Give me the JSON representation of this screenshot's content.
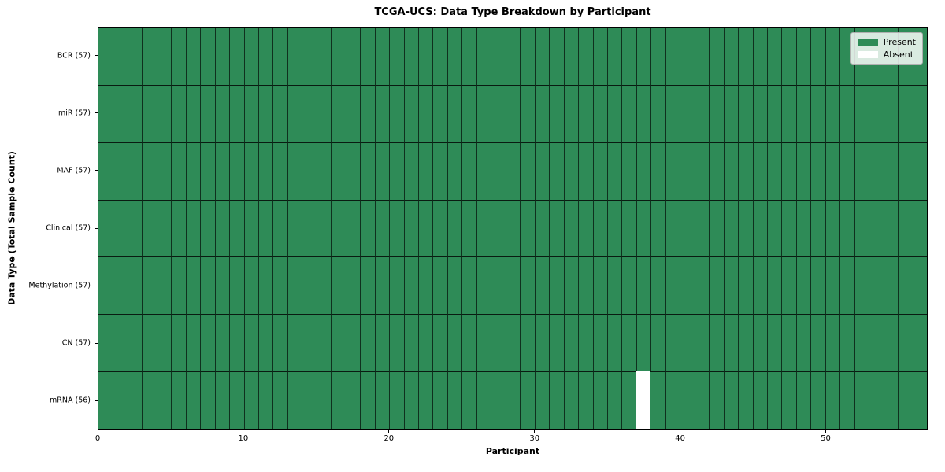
{
  "chart_data": {
    "type": "heatmap",
    "title": "TCGA-UCS: Data Type Breakdown by Participant",
    "xlabel": "Participant",
    "ylabel": "Data Type (Total Sample Count)",
    "n_participants": 57,
    "x_ticks": [
      0,
      10,
      20,
      30,
      40,
      50
    ],
    "rows": [
      {
        "label": "BCR (57)",
        "data_type": "BCR",
        "total_sample_count": 57,
        "absent_participants": []
      },
      {
        "label": "miR (57)",
        "data_type": "miR",
        "total_sample_count": 57,
        "absent_participants": []
      },
      {
        "label": "MAF (57)",
        "data_type": "MAF",
        "total_sample_count": 57,
        "absent_participants": []
      },
      {
        "label": "Clinical (57)",
        "data_type": "Clinical",
        "total_sample_count": 57,
        "absent_participants": []
      },
      {
        "label": "Methylation (57)",
        "data_type": "Methylation",
        "total_sample_count": 57,
        "absent_participants": []
      },
      {
        "label": "CN (57)",
        "data_type": "CN",
        "total_sample_count": 57,
        "absent_participants": []
      },
      {
        "label": "mRNA (56)",
        "data_type": "mRNA",
        "total_sample_count": 56,
        "absent_participants": [
          37
        ]
      }
    ],
    "legend": [
      {
        "label": "Present",
        "color": "#2e8b57"
      },
      {
        "label": "Absent",
        "color": "#ffffff"
      }
    ],
    "colors": {
      "present": "#2e8b57",
      "absent": "#ffffff",
      "grid_line": "#1c1c1c",
      "spine": "#000000",
      "legend_background": "#eef1ee"
    },
    "legend_position": "upper right",
    "grid": true
  }
}
